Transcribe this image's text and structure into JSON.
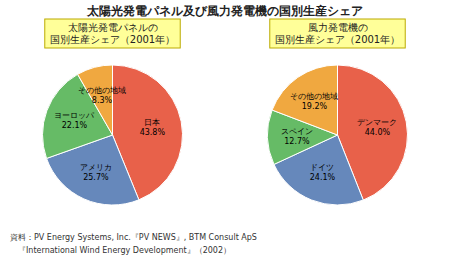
{
  "title": "太陽光発電パネル及び風力発電機の国別生産シェア",
  "annotations": [
    "資料：PV Energy Systems, Inc.『PV NEWS』, BTM Consult ApS",
    "　『International Wind Energy Development』（2002）"
  ],
  "chart_data": [
    {
      "type": "pie",
      "title": "太陽光発電パネルの\n国別生産シェア（2001年）",
      "categories": [
        "日本",
        "アメリカ",
        "ヨーロッパ",
        "その他の地域"
      ],
      "values": [
        43.8,
        25.7,
        22.1,
        8.3
      ],
      "value_labels": [
        "43.8%",
        "25.7%",
        "22.1%",
        "8.3%"
      ],
      "colors": [
        "#E8614A",
        "#6688BB",
        "#66BB66",
        "#F0A840"
      ],
      "data_labels": true
    },
    {
      "type": "pie",
      "title": "風力発電機の\n国別生産シェア（2001年）",
      "categories": [
        "デンマーク",
        "ドイツ",
        "スペイン",
        "その他の地域"
      ],
      "values": [
        44.0,
        24.1,
        12.7,
        19.2
      ],
      "value_labels": [
        "44.0%",
        "24.1%",
        "12.7%",
        "19.2%"
      ],
      "colors": [
        "#E8614A",
        "#6688BB",
        "#66BB66",
        "#F0A840"
      ],
      "data_labels": true
    }
  ]
}
